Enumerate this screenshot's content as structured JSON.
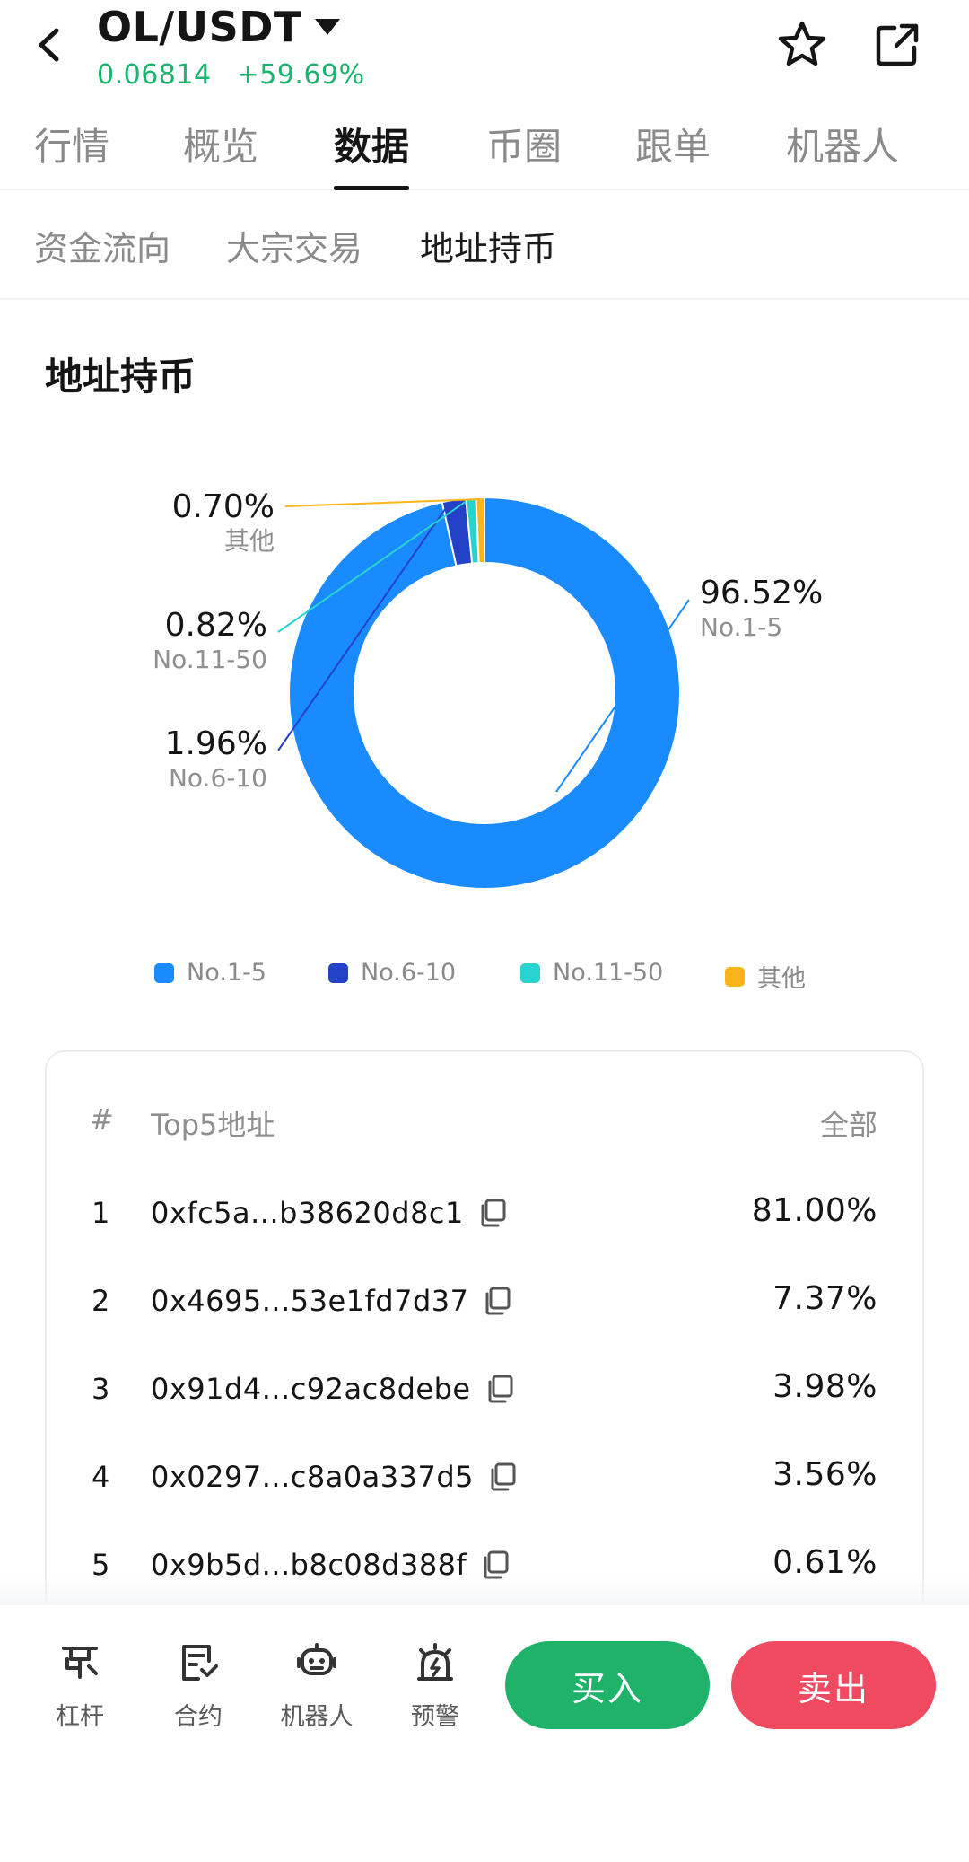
{
  "header": {
    "pair": "OL/USDT",
    "price": "0.06814",
    "change": "+59.69%"
  },
  "main_tabs": [
    {
      "label": "行情"
    },
    {
      "label": "概览"
    },
    {
      "label": "数据",
      "active": true
    },
    {
      "label": "币圈"
    },
    {
      "label": "跟单"
    },
    {
      "label": "机器人"
    }
  ],
  "sub_tabs": [
    {
      "label": "资金流向"
    },
    {
      "label": "大宗交易"
    },
    {
      "label": "地址持币",
      "active": true
    }
  ],
  "section_title": "地址持币",
  "chart_data": {
    "type": "pie",
    "title": "",
    "donut": true,
    "slices": [
      {
        "label": "No.1-5",
        "value": 96.52,
        "value_label": "96.52%",
        "color": "#1a8bff"
      },
      {
        "label": "No.6-10",
        "value": 1.96,
        "value_label": "1.96%",
        "color": "#2442c8"
      },
      {
        "label": "No.11-50",
        "value": 0.82,
        "value_label": "0.82%",
        "color": "#26d3cf"
      },
      {
        "label": "其他",
        "value": 0.7,
        "value_label": "0.70%",
        "color": "#fbb51a"
      }
    ],
    "legend_position": "bottom"
  },
  "legend": [
    {
      "label": "No.1-5",
      "color": "#1a8bff"
    },
    {
      "label": "No.6-10",
      "color": "#2442c8"
    },
    {
      "label": "No.11-50",
      "color": "#26d3cf"
    },
    {
      "label": "其他",
      "color": "#fbb51a"
    }
  ],
  "table": {
    "col_rank": "#",
    "col_addr": "Top5地址",
    "col_all": "全部",
    "rows": [
      {
        "rank": "1",
        "address": "0xfc5a...b38620d8c1",
        "pct": "81.00%"
      },
      {
        "rank": "2",
        "address": "0x4695...53e1fd7d37",
        "pct": "7.37%"
      },
      {
        "rank": "3",
        "address": "0x91d4...c92ac8debe",
        "pct": "3.98%"
      },
      {
        "rank": "4",
        "address": "0x0297...c8a0a337d5",
        "pct": "3.56%"
      },
      {
        "rank": "5",
        "address": "0x9b5d...b8c08d388f",
        "pct": "0.61%"
      }
    ]
  },
  "bottom": {
    "tools": [
      {
        "label": "杠杆",
        "icon": "leverage-icon"
      },
      {
        "label": "合约",
        "icon": "contract-icon"
      },
      {
        "label": "机器人",
        "icon": "robot-icon"
      },
      {
        "label": "预警",
        "icon": "alarm-icon"
      }
    ],
    "buy": "买入",
    "sell": "卖出"
  },
  "colors": {
    "up": "#1bb46e",
    "buy": "#1fb36a",
    "sell": "#ef4a5f"
  }
}
